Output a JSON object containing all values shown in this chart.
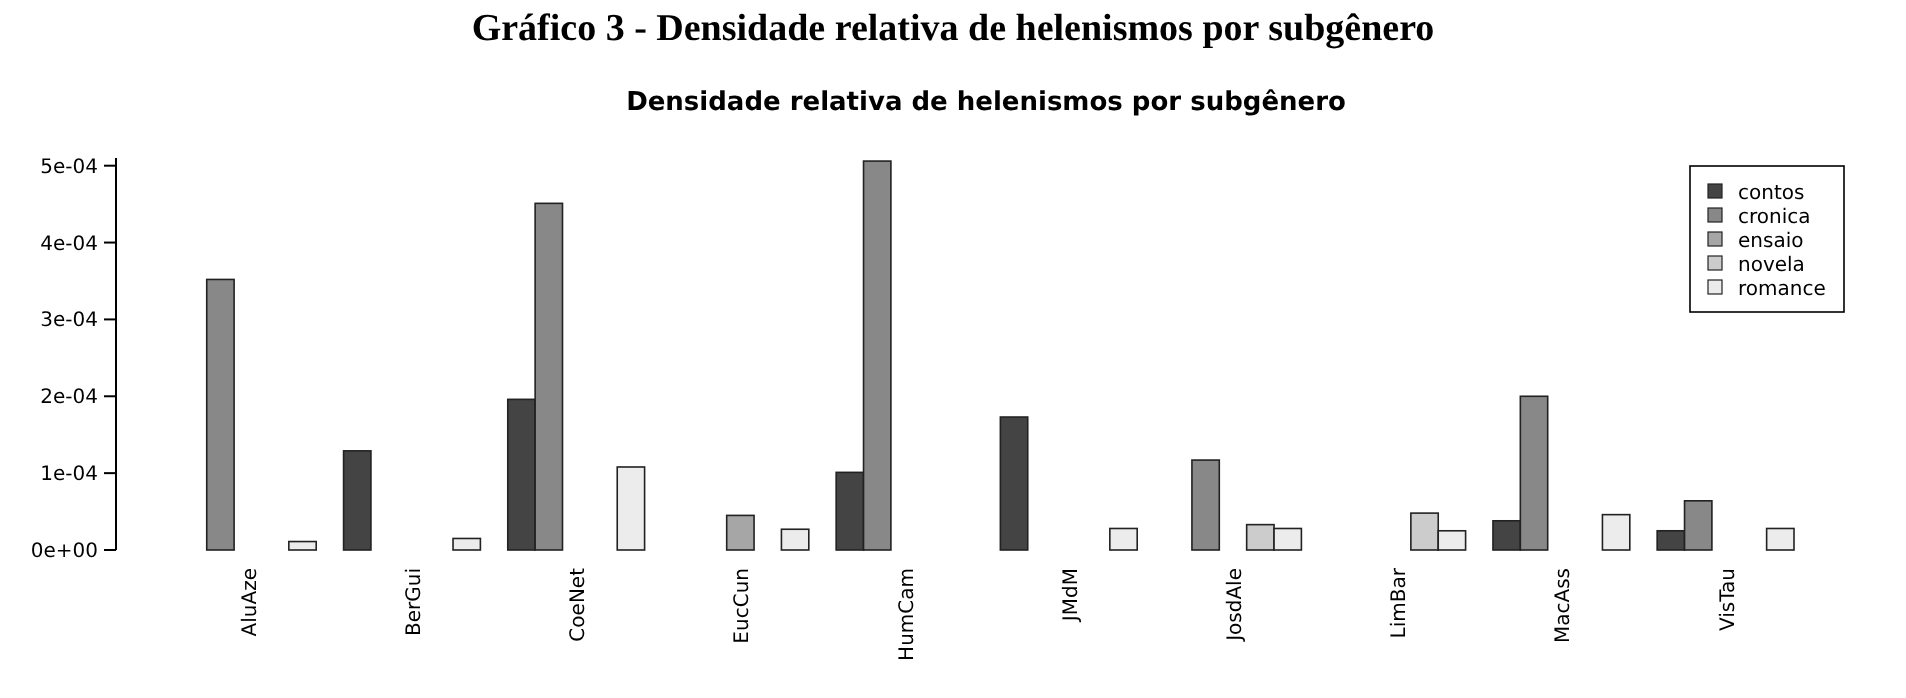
{
  "chart_data": {
    "type": "bar",
    "title": "Gráfico 3 - Densidade relativa de helenismos por subgênero",
    "subtitle": "Densidade relativa de helenismos por subgênero",
    "categories": [
      "AluAze",
      "BerGui",
      "CoeNet",
      "EucCun",
      "HumCam",
      "JMdM",
      "JosdAle",
      "LimBar",
      "MacAss",
      "VisTau"
    ],
    "series": [
      {
        "name": "contos",
        "color": "#444444",
        "values": [
          0,
          0.000129,
          0.000196,
          0,
          0.000101,
          0.000173,
          0,
          0,
          3.8e-05,
          2.5e-05
        ]
      },
      {
        "name": "cronica",
        "color": "#888888",
        "values": [
          0.000352,
          0,
          0.000451,
          0,
          0.000506,
          0,
          0.000117,
          0,
          0.0002,
          6.4e-05
        ]
      },
      {
        "name": "ensaio",
        "color": "#a6a6a6",
        "values": [
          0,
          0,
          0,
          4.5e-05,
          0,
          0,
          0,
          0,
          0,
          0
        ]
      },
      {
        "name": "novela",
        "color": "#cccccc",
        "values": [
          0,
          0,
          0,
          0,
          0,
          0,
          3.3e-05,
          4.8e-05,
          0,
          0
        ]
      },
      {
        "name": "romance",
        "color": "#ececec",
        "values": [
          1.1e-05,
          1.5e-05,
          0.000108,
          2.7e-05,
          0,
          2.8e-05,
          2.8e-05,
          2.5e-05,
          4.6e-05,
          2.8e-05
        ]
      }
    ],
    "ylim": [
      0,
      0.00051
    ],
    "yticks": [
      {
        "value": 0,
        "label": "0e+00"
      },
      {
        "value": 0.0001,
        "label": "1e-04"
      },
      {
        "value": 0.0002,
        "label": "2e-04"
      },
      {
        "value": 0.0003,
        "label": "3e-04"
      },
      {
        "value": 0.0004,
        "label": "4e-04"
      },
      {
        "value": 0.0005,
        "label": "5e-04"
      }
    ],
    "legend": "top right",
    "grid": false
  }
}
